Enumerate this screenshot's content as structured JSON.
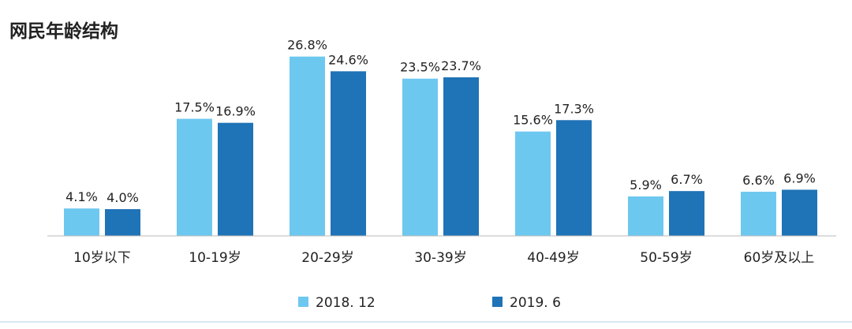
{
  "chart_data": {
    "type": "bar",
    "title": "网民年龄结构",
    "categories": [
      "10岁以下",
      "10-19岁",
      "20-29岁",
      "30-39岁",
      "40-49岁",
      "50-59岁",
      "60岁及以上"
    ],
    "series": [
      {
        "name": "2018. 12",
        "values": [
          4.1,
          17.5,
          26.8,
          23.5,
          15.6,
          5.9,
          6.6
        ],
        "color": "#6dc8f0"
      },
      {
        "name": "2019. 6",
        "values": [
          4.0,
          16.9,
          24.6,
          23.7,
          17.3,
          6.7,
          6.9
        ],
        "color": "#1f73b7"
      }
    ],
    "value_suffix": "%",
    "data_labels": true,
    "ylim": [
      0,
      27
    ],
    "legend": "bottom",
    "grid": false
  }
}
